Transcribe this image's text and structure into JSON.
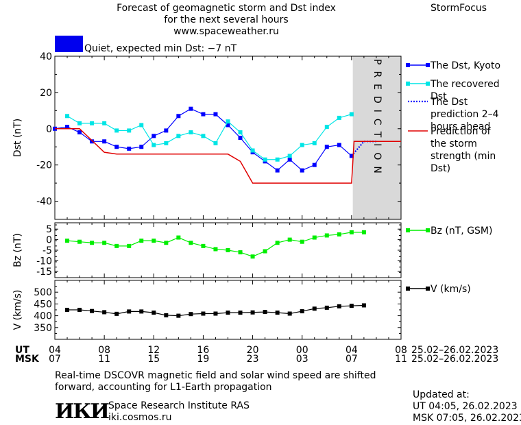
{
  "header": {
    "title_line1": "Forecast of geomagnetic storm and Dst index",
    "title_line2": "for the next several hours",
    "url": "www.spaceweather.ru",
    "brand": "StormFocus",
    "status_text": "Quiet, expected min Dst: −7 nT",
    "status_color": "#0000ee"
  },
  "prediction_label": "PREDICTION",
  "footer": {
    "note_line1": "Real-time DSCOVR magnetic field and solar wind speed are shifted",
    "note_line2": "forward, accounting for L1-Earth propagation",
    "institute": "Space Research Institute RAS",
    "institute_url": "iki.cosmos.ru",
    "logo_text": "ИКИ",
    "updated_label": "Updated at:",
    "updated_ut": "UT   04:05, 26.02.2023",
    "updated_msk": "MSK 07:05, 26.02.2023"
  },
  "time_axis": {
    "ut_label": "UT",
    "msk_label": "MSK",
    "ut_ticks": [
      "04",
      "08",
      "12",
      "16",
      "20",
      "00",
      "04",
      "08"
    ],
    "msk_ticks": [
      "07",
      "11",
      "15",
      "19",
      "23",
      "03",
      "07",
      "11"
    ],
    "ut_date_range": "25.02–26.02.2023",
    "msk_date_range": "25.02–26.02.2023"
  },
  "chart_data": [
    {
      "type": "line",
      "ylabel": "Dst (nT)",
      "ylim": [
        -50,
        40
      ],
      "yticks": [
        40,
        20,
        0,
        -20,
        -40
      ],
      "xlim": [
        0,
        28
      ],
      "prediction_start": 24.1,
      "series": [
        {
          "name": "The Dst, Kyoto",
          "color": "#0000ff",
          "marker": "square",
          "x": [
            0,
            1,
            2,
            3,
            4,
            5,
            6,
            7,
            8,
            9,
            10,
            11,
            12,
            13,
            14,
            15,
            16,
            17,
            18,
            19,
            20,
            21,
            22,
            23,
            24
          ],
          "y": [
            0,
            1,
            -2,
            -7,
            -7,
            -10,
            -11,
            -10,
            -4,
            -1,
            7,
            11,
            8,
            8,
            2,
            -5,
            -13,
            -18,
            -23,
            -17,
            -23,
            -20,
            -10,
            -9,
            -15
          ]
        },
        {
          "name": "The recovered Dst",
          "color": "#00e5e5",
          "marker": "square",
          "x": [
            1,
            2,
            3,
            4,
            5,
            6,
            7,
            8,
            9,
            10,
            11,
            12,
            13,
            14,
            15,
            16,
            17,
            18,
            19,
            20,
            21,
            22,
            23,
            24
          ],
          "y": [
            7,
            3,
            3,
            3,
            -1,
            -1,
            2,
            -9,
            -8,
            -4,
            -2,
            -4,
            -8,
            4,
            -2,
            -12,
            -17,
            -17,
            -15,
            -9,
            -8,
            1,
            6,
            8
          ]
        },
        {
          "name": "The Dst prediction 2–4 hours ahead",
          "color": "#0000ff",
          "style": "dotted",
          "x": [
            24,
            25,
            26
          ],
          "y": [
            -15,
            -7,
            -7
          ]
        },
        {
          "name": "Prediction of the storm strength (min Dst)",
          "color": "#e00000",
          "style": "solid",
          "x": [
            0,
            2,
            4,
            5,
            14,
            15,
            16,
            24,
            24.2,
            28
          ],
          "y": [
            0,
            0,
            -13,
            -14,
            -14,
            -18,
            -30,
            -30,
            -7,
            -7
          ]
        }
      ]
    },
    {
      "type": "line",
      "ylabel": "Bz (nT)",
      "ylim": [
        -18,
        8
      ],
      "yticks": [
        5,
        0,
        -5,
        -10,
        -15
      ],
      "xlim": [
        0,
        28
      ],
      "series": [
        {
          "name": "Bz (nT, GSM)",
          "color": "#00ee00",
          "marker": "square",
          "x": [
            1,
            2,
            3,
            4,
            5,
            6,
            7,
            8,
            9,
            10,
            11,
            12,
            13,
            14,
            15,
            16,
            17,
            18,
            19,
            20,
            21,
            22,
            23,
            24,
            25
          ],
          "y": [
            -0.5,
            -1,
            -1.5,
            -1.5,
            -3,
            -3,
            -0.5,
            -0.5,
            -1.5,
            1,
            -1.5,
            -3,
            -4.5,
            -5,
            -6,
            -8,
            -5.5,
            -1.5,
            0,
            -1,
            1,
            2,
            2.5,
            3.5,
            3.5
          ]
        }
      ]
    },
    {
      "type": "line",
      "ylabel": "V (km/s)",
      "ylim": [
        300,
        550
      ],
      "yticks": [
        500,
        450,
        400,
        350
      ],
      "xlim": [
        0,
        28
      ],
      "series": [
        {
          "name": "V (km/s)",
          "color": "#000000",
          "marker": "square",
          "x": [
            1,
            2,
            3,
            4,
            5,
            6,
            7,
            8,
            9,
            10,
            11,
            12,
            13,
            14,
            15,
            16,
            17,
            18,
            19,
            20,
            21,
            22,
            23,
            24,
            25
          ],
          "y": [
            425,
            425,
            420,
            415,
            408,
            418,
            418,
            413,
            402,
            400,
            407,
            409,
            409,
            413,
            413,
            414,
            416,
            413,
            409,
            419,
            430,
            434,
            440,
            442,
            444
          ]
        }
      ]
    }
  ]
}
